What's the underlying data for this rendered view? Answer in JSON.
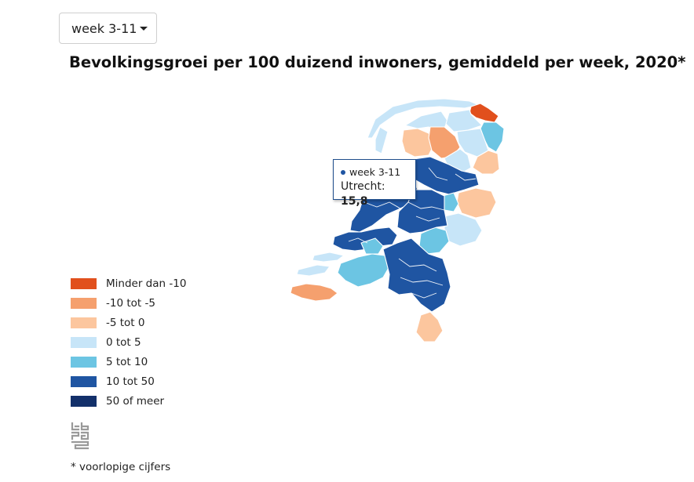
{
  "filter": {
    "selected": "week 3-11"
  },
  "title": "Bevolkingsgroei per 100 duizend inwoners, gemiddeld per week, 2020*",
  "tooltip": {
    "week": "week 3-11",
    "region": "Utrecht:",
    "value": "15,8"
  },
  "legend": [
    {
      "label": "Minder dan -10",
      "color": "#e1501d"
    },
    {
      "label": "-10 tot -5",
      "color": "#f5a06e"
    },
    {
      "label": "-5 tot 0",
      "color": "#fcc69e"
    },
    {
      "label": "0 tot 5",
      "color": "#c7e5f8"
    },
    {
      "label": "5 tot 10",
      "color": "#6cc5e3"
    },
    {
      "label": "10 tot 50",
      "color": "#1f55a2"
    },
    {
      "label": "50 of meer",
      "color": "#13306a"
    }
  ],
  "footnote": "* voorlopige cijfers",
  "logo_icon": "cbs-logo-icon"
}
